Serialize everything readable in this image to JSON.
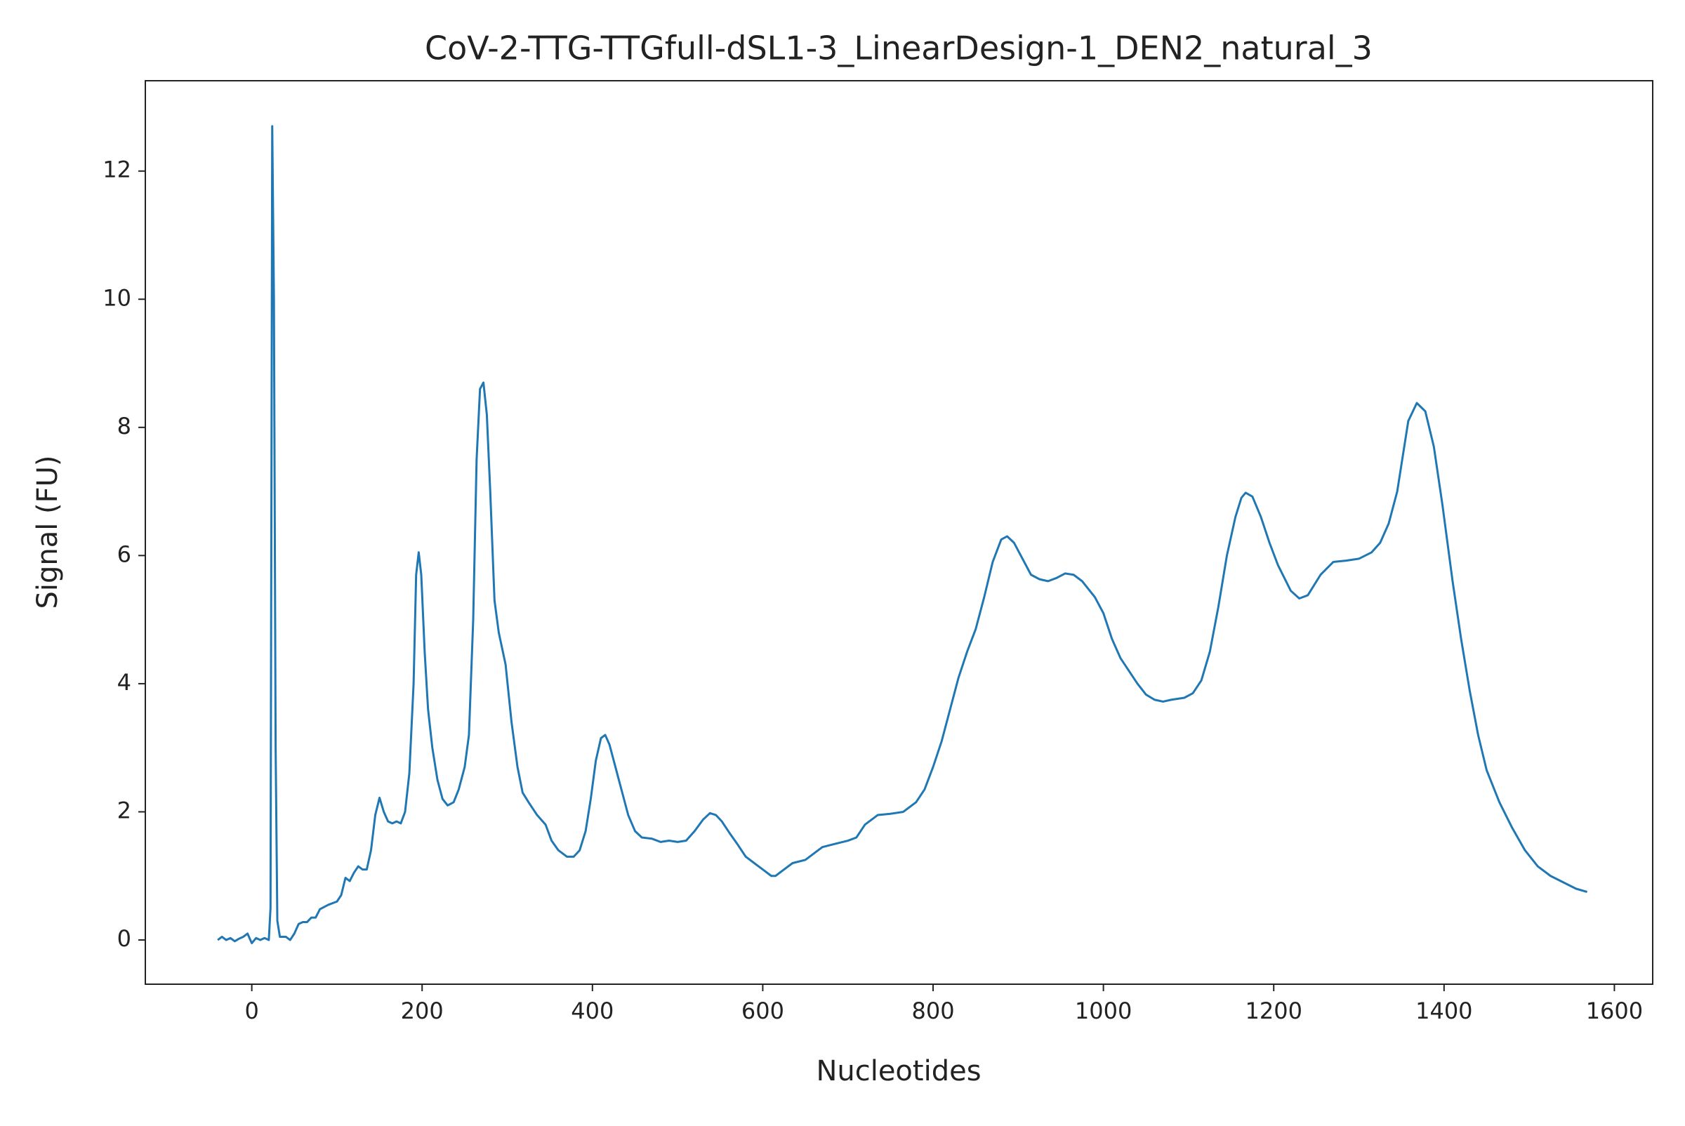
{
  "chart_data": {
    "type": "line",
    "title": "CoV-2-TTG-TTGfull-dSL1-3_LinearDesign-1_DEN2_natural_3",
    "x_label": "Nucleotides",
    "y_label": "Signal (FU)",
    "color": "#1f77b4",
    "x": [
      -40,
      -35,
      -30,
      -25,
      -20,
      -15,
      -10,
      -5,
      0,
      5,
      10,
      15,
      20,
      22,
      24,
      26,
      28,
      30,
      33,
      40,
      45,
      50,
      55,
      60,
      65,
      70,
      75,
      80,
      90,
      100,
      105,
      110,
      115,
      120,
      125,
      130,
      135,
      140,
      145,
      150,
      155,
      160,
      165,
      170,
      175,
      180,
      185,
      190,
      193,
      196,
      199,
      203,
      207,
      212,
      218,
      224,
      230,
      237,
      243,
      250,
      255,
      260,
      264,
      268,
      272,
      276,
      280,
      285,
      290,
      298,
      305,
      312,
      318,
      325,
      335,
      345,
      352,
      360,
      370,
      378,
      385,
      392,
      398,
      404,
      410,
      415,
      420,
      427,
      435,
      442,
      450,
      458,
      470,
      480,
      490,
      500,
      510,
      520,
      530,
      538,
      545,
      552,
      562,
      570,
      580,
      590,
      600,
      610,
      615,
      625,
      635,
      650,
      660,
      670,
      685,
      700,
      710,
      720,
      735,
      750,
      765,
      780,
      790,
      800,
      810,
      820,
      830,
      840,
      850,
      860,
      870,
      880,
      887,
      895,
      905,
      915,
      925,
      935,
      945,
      955,
      965,
      975,
      990,
      1000,
      1010,
      1020,
      1030,
      1040,
      1050,
      1060,
      1070,
      1080,
      1095,
      1105,
      1115,
      1125,
      1135,
      1145,
      1155,
      1162,
      1167,
      1175,
      1185,
      1195,
      1205,
      1220,
      1230,
      1240,
      1255,
      1270,
      1285,
      1300,
      1315,
      1325,
      1335,
      1345,
      1358,
      1368,
      1378,
      1388,
      1398,
      1410,
      1420,
      1430,
      1440,
      1450,
      1465,
      1480,
      1495,
      1510,
      1525,
      1540,
      1555,
      1568
    ],
    "values": [
      0,
      0.05,
      0,
      0.03,
      -0.02,
      0.02,
      0.05,
      0.1,
      -0.05,
      0.03,
      0,
      0.03,
      0,
      0.5,
      12.7,
      10,
      3,
      0.3,
      0.05,
      0.05,
      0,
      0.1,
      0.25,
      0.28,
      0.28,
      0.35,
      0.35,
      0.48,
      0.55,
      0.6,
      0.7,
      0.97,
      0.92,
      1.05,
      1.15,
      1.1,
      1.1,
      1.4,
      1.95,
      2.22,
      2.0,
      1.85,
      1.82,
      1.85,
      1.82,
      2.0,
      2.6,
      4.0,
      5.7,
      6.05,
      5.7,
      4.5,
      3.6,
      3.0,
      2.5,
      2.2,
      2.1,
      2.15,
      2.35,
      2.7,
      3.2,
      5.0,
      7.5,
      8.6,
      8.7,
      8.2,
      7.0,
      5.3,
      4.8,
      4.3,
      3.4,
      2.7,
      2.3,
      2.15,
      1.95,
      1.8,
      1.55,
      1.4,
      1.3,
      1.3,
      1.4,
      1.7,
      2.2,
      2.8,
      3.15,
      3.2,
      3.05,
      2.7,
      2.3,
      1.95,
      1.7,
      1.6,
      1.58,
      1.53,
      1.55,
      1.53,
      1.55,
      1.7,
      1.88,
      1.98,
      1.95,
      1.85,
      1.65,
      1.5,
      1.3,
      1.2,
      1.1,
      1.0,
      1.0,
      1.1,
      1.2,
      1.25,
      1.35,
      1.45,
      1.5,
      1.55,
      1.6,
      1.8,
      1.95,
      1.97,
      2.0,
      2.15,
      2.35,
      2.7,
      3.1,
      3.6,
      4.1,
      4.5,
      4.85,
      5.35,
      5.9,
      6.25,
      6.3,
      6.2,
      5.95,
      5.7,
      5.63,
      5.6,
      5.65,
      5.72,
      5.7,
      5.6,
      5.35,
      5.1,
      4.7,
      4.4,
      4.2,
      4.0,
      3.83,
      3.75,
      3.72,
      3.75,
      3.78,
      3.85,
      4.05,
      4.5,
      5.2,
      6.0,
      6.6,
      6.9,
      6.98,
      6.92,
      6.6,
      6.2,
      5.85,
      5.45,
      5.33,
      5.38,
      5.7,
      5.9,
      5.92,
      5.95,
      6.05,
      6.2,
      6.5,
      7.0,
      8.1,
      8.38,
      8.25,
      7.7,
      6.8,
      5.6,
      4.7,
      3.9,
      3.2,
      2.65,
      2.15,
      1.75,
      1.4,
      1.15,
      1.0,
      0.9,
      0.8,
      0.75
    ],
    "xlim": [
      -125,
      1645
    ],
    "ylim": [
      -0.69,
      13.41
    ],
    "xticks": [
      0,
      200,
      400,
      600,
      800,
      1000,
      1200,
      1400,
      1600
    ],
    "yticks": [
      0,
      2,
      4,
      6,
      8,
      10,
      12
    ],
    "grid": false
  }
}
